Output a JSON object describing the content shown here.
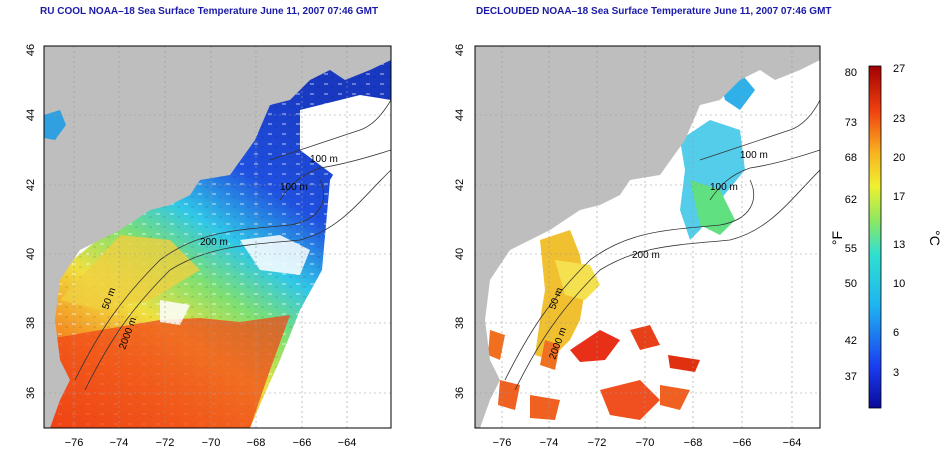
{
  "titles": {
    "left": "RU COOL NOAA–18 Sea Surface Temperature June 11, 2007 07:46 GMT",
    "right": "DECLOUDED NOAA–18 Sea Surface Temperature June 11, 2007 07:46 GMT"
  },
  "axes": {
    "lon_ticks": [
      "−76",
      "−74",
      "−72",
      "−70",
      "−68",
      "−66",
      "−64"
    ],
    "lat_ticks": [
      "46",
      "44",
      "42",
      "40",
      "38",
      "36"
    ]
  },
  "contours": {
    "m100": "100 m",
    "m200": "200 m",
    "m2000": "2000 m",
    "m50": "50 m"
  },
  "colorbar": {
    "fahrenheit_ticks": [
      "80",
      "73",
      "68",
      "62",
      "55",
      "50",
      "42",
      "37"
    ],
    "celsius_ticks": [
      "27",
      "23",
      "20",
      "17",
      "13",
      "10",
      "6",
      "3"
    ],
    "unit_f": "°F",
    "unit_c": "°C"
  },
  "colors": {
    "land": "#bebebe",
    "cloud": "#ffffff",
    "title": "#1a1aa8"
  }
}
